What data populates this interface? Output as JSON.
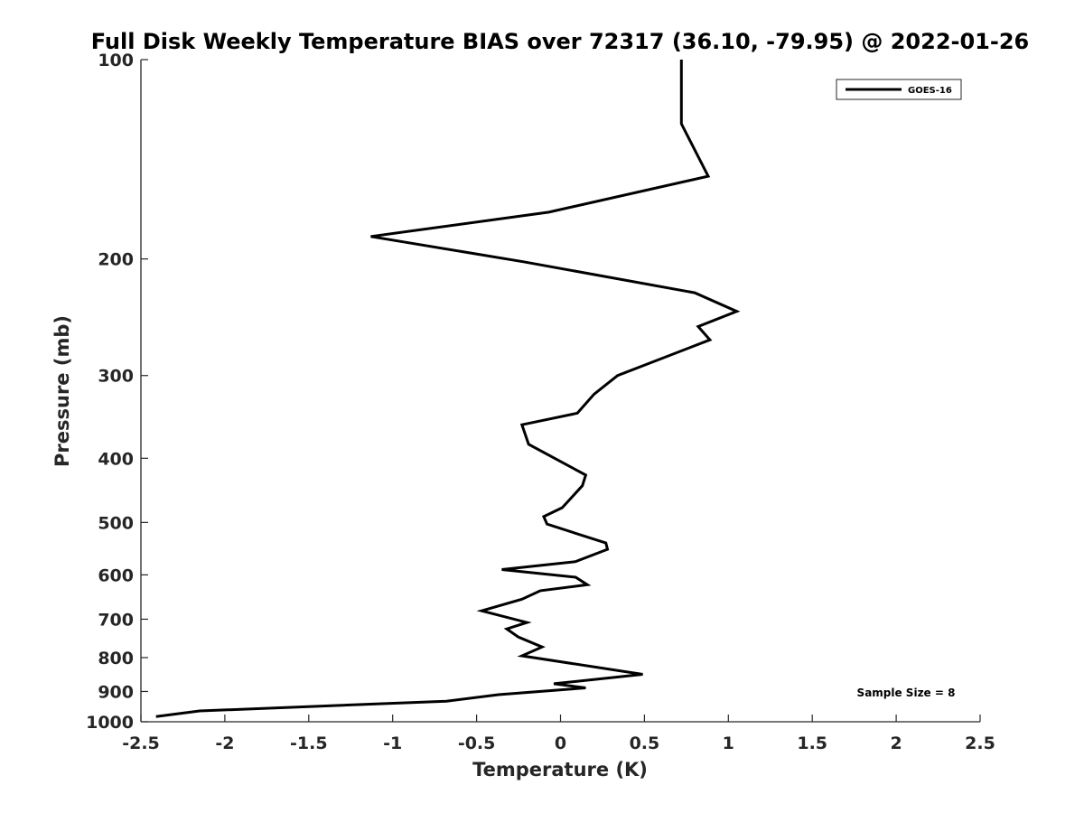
{
  "chart_data": {
    "type": "line",
    "title": "Full Disk Weekly Temperature BIAS over 72317 (36.10, -79.95) @ 2022-01-26",
    "xlabel": "Temperature (K)",
    "ylabel": "Pressure (mb)",
    "xlim": [
      -2.5,
      2.5
    ],
    "ylim": [
      100,
      1000
    ],
    "y_scale": "log",
    "y_reversed": true,
    "x_ticks": [
      "-2.5",
      "-2",
      "-1.5",
      "-1",
      "-0.5",
      "0",
      "0.5",
      "1",
      "1.5",
      "2",
      "2.5"
    ],
    "x_tick_values": [
      -2.5,
      -2,
      -1.5,
      -1,
      -0.5,
      0,
      0.5,
      1,
      1.5,
      2,
      2.5
    ],
    "y_ticks": [
      "100",
      "200",
      "300",
      "400",
      "500",
      "600",
      "700",
      "800",
      "900",
      "1000"
    ],
    "y_tick_values": [
      100,
      200,
      300,
      400,
      500,
      600,
      700,
      800,
      900,
      1000
    ],
    "grid": false,
    "legend_position": "top-right",
    "annotation": "Sample Size = 8",
    "series": [
      {
        "name": "GOES-16",
        "color": "#000000",
        "x": [
          0.72,
          0.72,
          0.88,
          -0.07,
          -1.13,
          -0.22,
          0.8,
          1.05,
          0.82,
          0.89,
          0.34,
          0.2,
          0.1,
          -0.23,
          -0.19,
          0.15,
          0.13,
          0.01,
          -0.1,
          -0.08,
          0.27,
          0.28,
          0.09,
          -0.35,
          0.09,
          0.16,
          -0.12,
          -0.23,
          -0.47,
          -0.2,
          -0.32,
          -0.25,
          -0.11,
          -0.23,
          0.49,
          -0.04,
          0.15,
          -0.37,
          -0.68,
          -2.15,
          -2.41
        ],
        "y": [
          100,
          125,
          150,
          170,
          185,
          202,
          225,
          240,
          253,
          265,
          300,
          320,
          342,
          356,
          381,
          424,
          440,
          475,
          490,
          503,
          537,
          549,
          573,
          589,
          605,
          621,
          634,
          653,
          680,
          708,
          724,
          745,
          771,
          795,
          848,
          876,
          889,
          910,
          931,
          963,
          982
        ]
      }
    ]
  }
}
